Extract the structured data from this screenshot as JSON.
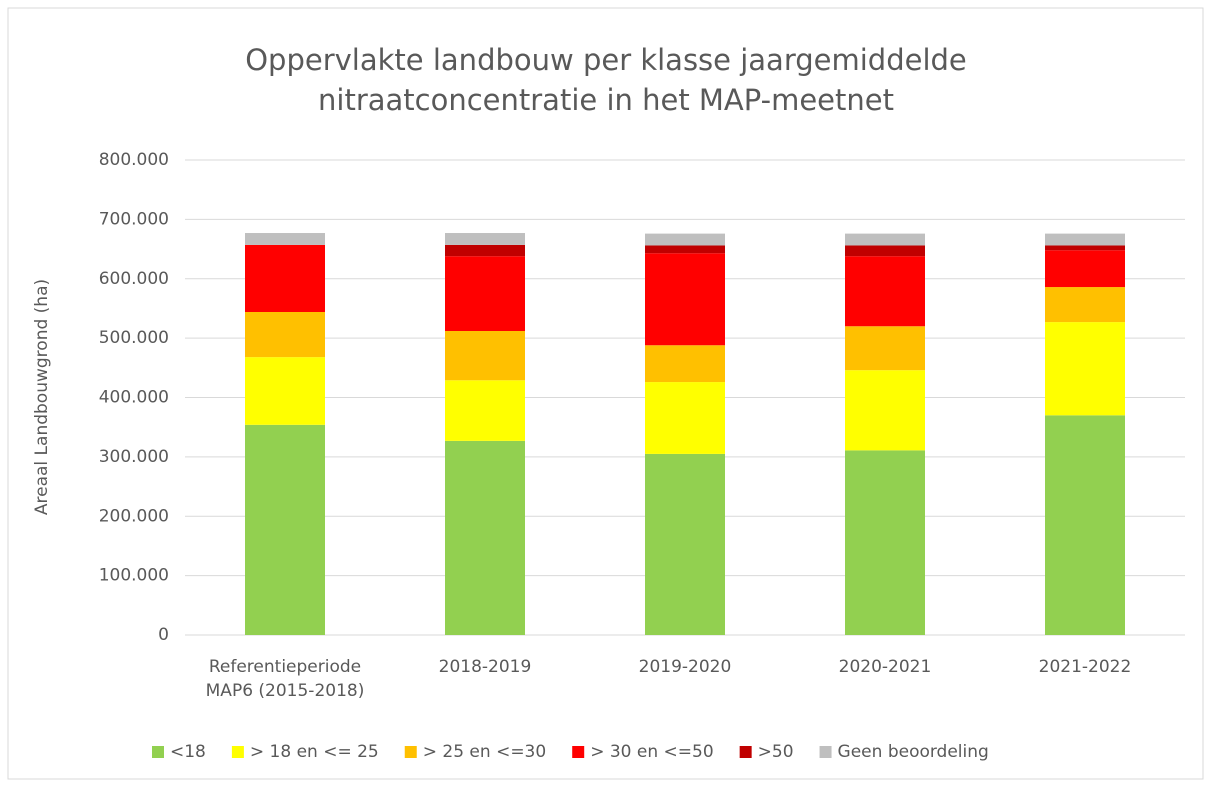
{
  "chart_data": {
    "type": "stacked_bar",
    "title": "Oppervlakte landbouw per klasse jaargemiddelde\nnitraatconcentratie in het MAP-meetnet",
    "y_label": "Areaal Landbouwgrond (ha)",
    "categories": [
      "Referentieperiode\nMAP6 (2015-2018)",
      "2018-2019",
      "2019-2020",
      "2020-2021",
      "2021-2022"
    ],
    "series": [
      {
        "name": "<18",
        "color": "#92d050",
        "values": [
          354000,
          327000,
          305000,
          311000,
          370000
        ]
      },
      {
        "name": "> 18 en <= 25",
        "color": "#ffff00",
        "values": [
          114000,
          102000,
          121000,
          135000,
          157000
        ]
      },
      {
        "name": "> 25 en <=30",
        "color": "#ffc000",
        "values": [
          76000,
          83000,
          62000,
          74000,
          59000
        ]
      },
      {
        "name": "> 30 en <=50",
        "color": "#ff0000",
        "values": [
          113000,
          126000,
          155000,
          118000,
          62000
        ]
      },
      {
        "name": ">50",
        "color": "#c00000",
        "values": [
          0,
          19000,
          13000,
          18000,
          8000
        ]
      },
      {
        "name": "Geen beoordeling",
        "color": "#bfbfbf",
        "values": [
          20000,
          20000,
          20000,
          20000,
          20000
        ]
      }
    ],
    "ylim": [
      0,
      800000
    ],
    "yticks": [
      0,
      {
        "value": 100000,
        "label": "100.000"
      },
      {
        "value": 200000,
        "label": "200.000"
      },
      {
        "value": 300000,
        "label": "300.000"
      },
      {
        "value": 400000,
        "label": "400.000"
      },
      {
        "value": 500000,
        "label": "500.000"
      },
      {
        "value": 600000,
        "label": "600.000"
      },
      {
        "value": 700000,
        "label": "700.000"
      },
      {
        "value": 800000,
        "label": "800.000"
      }
    ],
    "grid": true,
    "legend": "bottom"
  }
}
